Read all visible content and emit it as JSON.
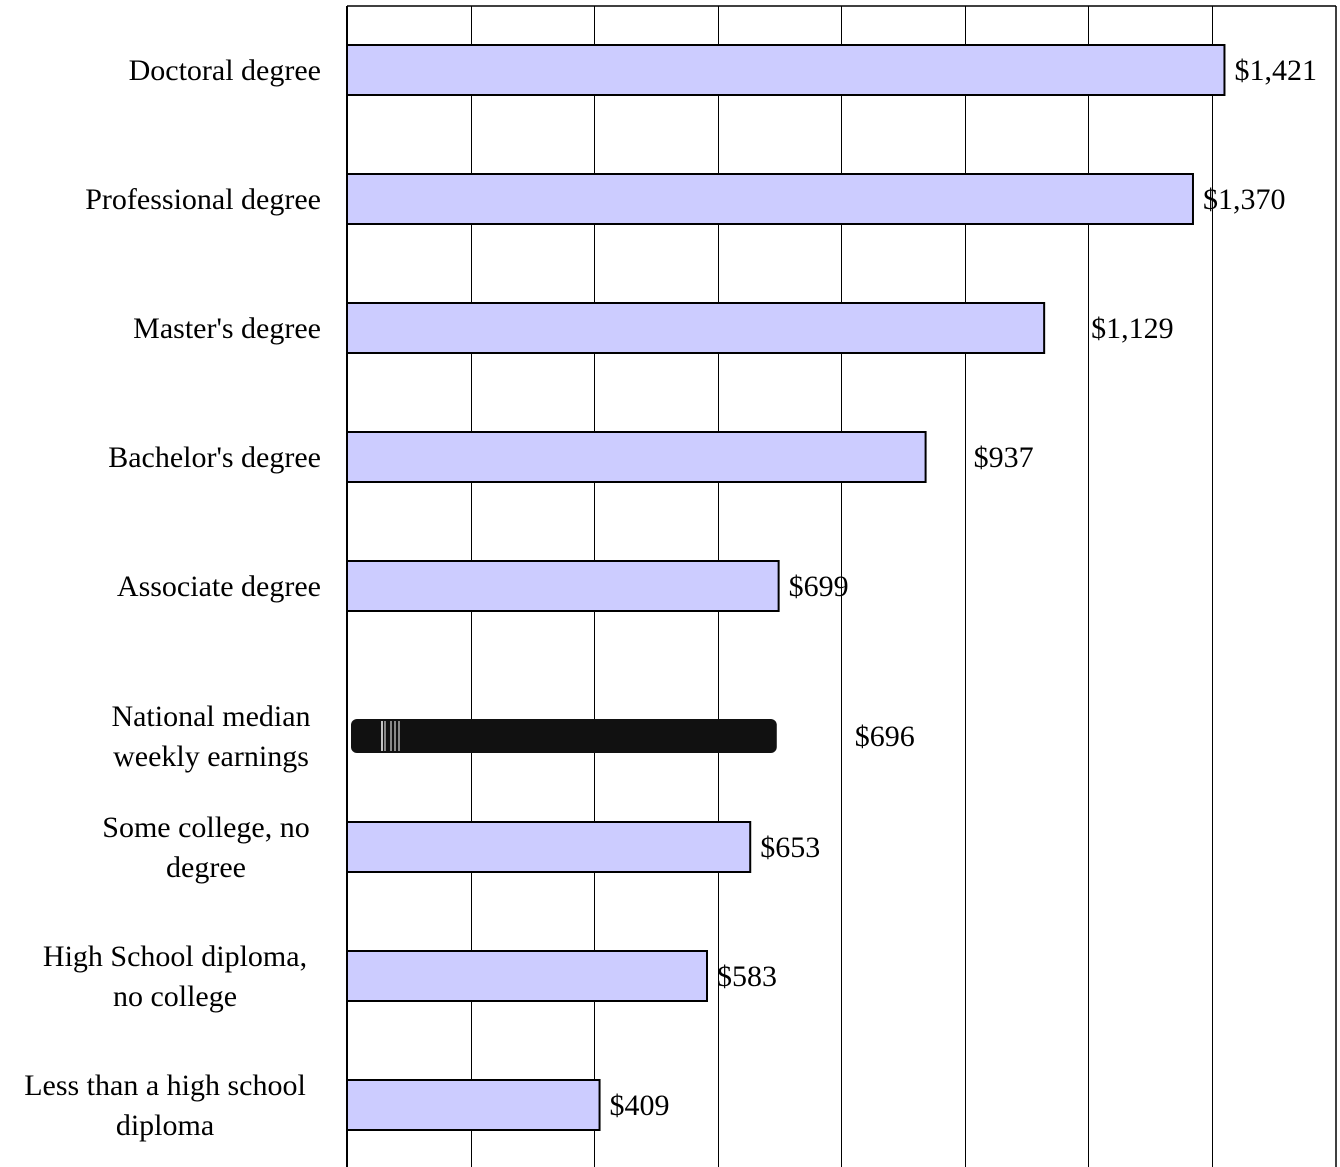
{
  "chart_data": {
    "type": "bar",
    "orientation": "horizontal",
    "title": "",
    "xlabel": "",
    "ylabel": "",
    "xlim": [
      0,
      1500
    ],
    "grid": true,
    "legend": "none",
    "categories": [
      "Doctoral degree",
      "Professional degree",
      "Master's degree",
      "Bachelor's degree",
      "Associate degree",
      "National median weekly earnings",
      "Some college, no degree",
      "High School diploma, no college",
      "Less than a high school diploma"
    ],
    "category_lines": [
      [
        "Doctoral degree"
      ],
      [
        "Professional degree"
      ],
      [
        "Master's degree"
      ],
      [
        "Bachelor's degree"
      ],
      [
        "Associate degree"
      ],
      [
        "National median",
        "weekly earnings"
      ],
      [
        "Some college, no",
        "degree"
      ],
      [
        "High School diploma,",
        "no college"
      ],
      [
        "Less than a high school",
        "diploma"
      ]
    ],
    "values": [
      1421,
      1370,
      1129,
      937,
      699,
      696,
      653,
      583,
      409
    ],
    "value_labels": [
      "$1,421",
      "$1,370",
      "$1,129",
      "$937",
      "$699",
      "$696",
      "$653",
      "$583",
      "$409"
    ],
    "highlight_category": "National median weekly earnings",
    "colors": {
      "bar_fill": "#ccccff",
      "bar_stroke": "#000000",
      "highlight_fill": "#111111",
      "grid": "#000000"
    }
  }
}
